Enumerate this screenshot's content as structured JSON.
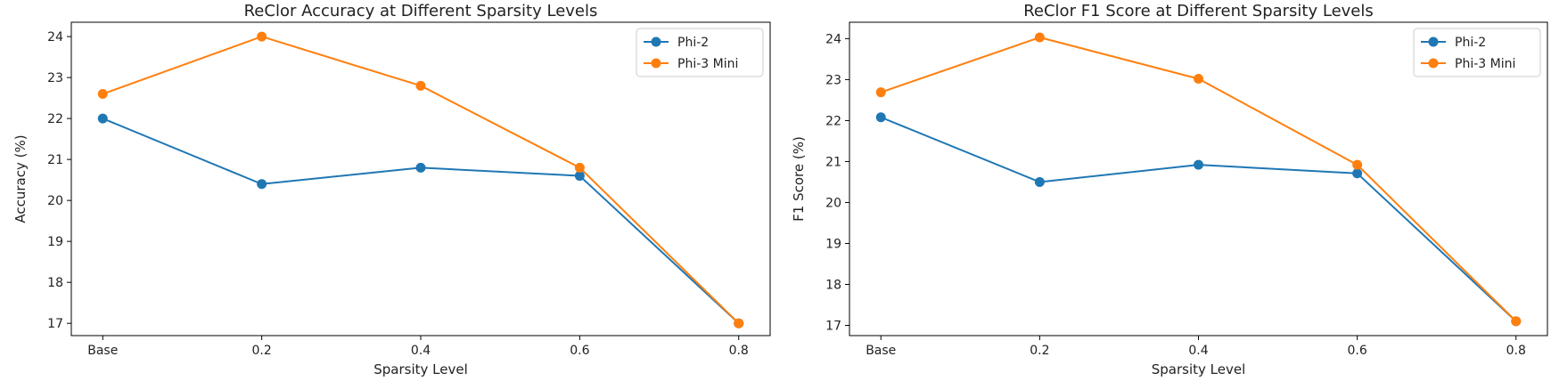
{
  "chart_data": [
    {
      "type": "line",
      "title": "ReClor Accuracy at Different Sparsity Levels",
      "xlabel": "Sparsity Level",
      "ylabel": "Accuracy (%)",
      "categories": [
        "Base",
        "0.2",
        "0.4",
        "0.6",
        "0.8"
      ],
      "ylim": [
        16.7,
        24.35
      ],
      "yticks": [
        "17",
        "18",
        "19",
        "20",
        "21",
        "22",
        "23",
        "24"
      ],
      "grid": false,
      "legend": "top-right",
      "series": [
        {
          "name": "Phi-2",
          "color": "#1f77b4",
          "marker": "circle",
          "values": [
            22.0,
            20.4,
            20.8,
            20.6,
            17.0
          ]
        },
        {
          "name": "Phi-3 Mini",
          "color": "#ff7f0e",
          "marker": "circle",
          "values": [
            22.6,
            24.0,
            22.8,
            20.8,
            17.0
          ]
        }
      ]
    },
    {
      "type": "line",
      "title": "ReClor F1 Score at Different Sparsity Levels",
      "xlabel": "Sparsity Level",
      "ylabel": "F1 Score (%)",
      "categories": [
        "Base",
        "0.2",
        "0.4",
        "0.6",
        "0.8"
      ],
      "ylim": [
        16.75,
        24.4
      ],
      "yticks": [
        "17",
        "18",
        "19",
        "20",
        "21",
        "22",
        "23",
        "24"
      ],
      "grid": false,
      "legend": "top-right",
      "series": [
        {
          "name": "Phi-2",
          "color": "#1f77b4",
          "marker": "circle",
          "values": [
            22.08,
            20.5,
            20.92,
            20.71,
            17.1
          ]
        },
        {
          "name": "Phi-3 Mini",
          "color": "#ff7f0e",
          "marker": "circle",
          "values": [
            22.69,
            24.03,
            23.02,
            20.92,
            17.1
          ]
        }
      ]
    }
  ]
}
